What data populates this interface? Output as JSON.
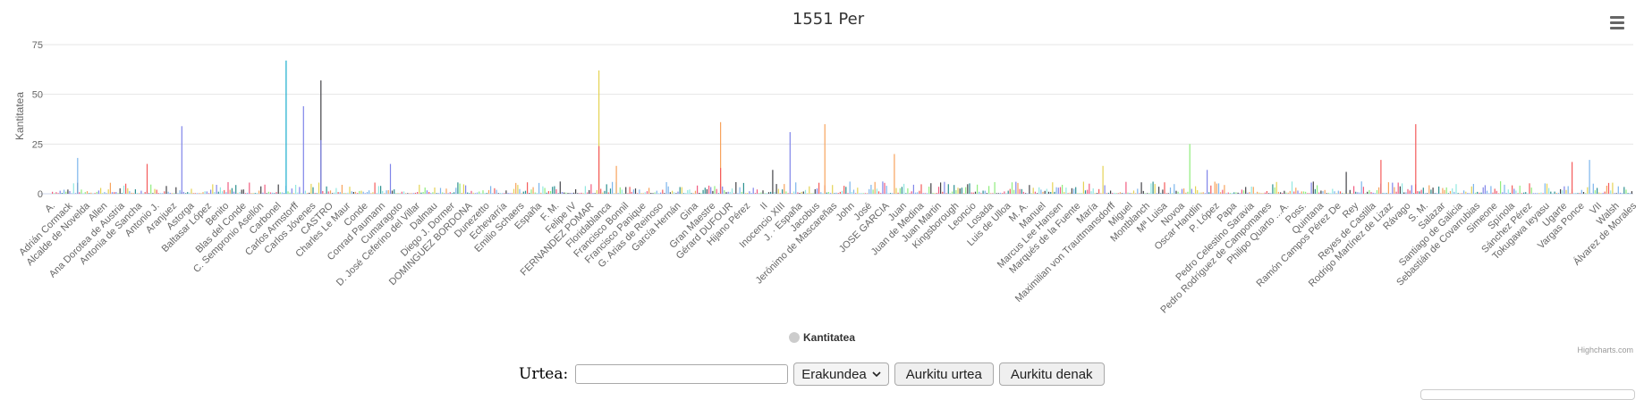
{
  "chart_data": {
    "type": "bar",
    "title": "1551 Per",
    "ylabel": "Kantitatea",
    "xlabel": "",
    "ylim": [
      0,
      75
    ],
    "yticks": [
      0,
      25,
      50,
      75
    ],
    "grid": true,
    "legend": {
      "position": "bottom-center",
      "entries": [
        "Kantitatea"
      ]
    },
    "categories": [
      "A.",
      "Adrián Cormack",
      "Alcalde de Novelda",
      "Allen",
      "Ana Dorotea de Austria",
      "Antonia de Sancha",
      "Antonio J.",
      "Aranjuez",
      "Astorga",
      "Baltasar López",
      "Benito",
      "Blas del Conde",
      "C. Sempronio Asellón",
      "Carbonel",
      "Carlos Armstorff",
      "Carlos Jóvenes",
      "CASTRO",
      "Charles Le Maur",
      "Conde",
      "Conrad Paumann",
      "Cumaragoto",
      "D. José Ceferino del Villar",
      "Dalmau",
      "Diego J. Dormer",
      "DOMINGUEZ BORDONA",
      "Dunezetto",
      "Echevarría",
      "Emilio Schaers",
      "España",
      "F. M.",
      "Felipe IV",
      "FERNANDEZ POMAR",
      "Floridablanca",
      "Francisco Bonnil",
      "Francisco Panique",
      "G. Arias de Reinoso",
      "García Hernán",
      "Gina",
      "Gran Maestre",
      "Gérard DUFOUR",
      "Hijano Pérez",
      "II",
      "Inocencio XIII",
      "J. · España",
      "Jacobus",
      "Jerónimo de Mascareñas",
      "John",
      "José",
      "JOSE GARCIA",
      "Juan",
      "Juan de Medina",
      "Juan Martin",
      "Kingsborough",
      "Leoncio",
      "Losada",
      "Luis de Ulloa",
      "M. A.",
      "Manuel",
      "Marcus Lee Hansen",
      "Marqués de la Fuente",
      "María",
      "Maximilian von Trauttmansdorff",
      "Miguel",
      "Montblanch",
      "Mª Luisa",
      "Novoa",
      "Oscar Handlin",
      "P. López",
      "Papa",
      "Pedro Celestino Saravia",
      "Pedro Rodríguez de Campomanes",
      "Philipo Quarto ...A.",
      "Poss.",
      "Quintana",
      "Ramón Campos Pérez De",
      "Rey",
      "Reyes de Castilla",
      "Rodrigo Martínez de Lizaz",
      "Rávago",
      "S. M.",
      "Salazar",
      "Santiago de Galicia",
      "Sebastián de Covarrubias",
      "Simeone",
      "Spínola",
      "Sánchez Pérez",
      "Tokugawa Ieyasu",
      "Ugarte",
      "Vargas Ponce",
      "VII",
      "Walsh",
      "Álvarez de Morales"
    ],
    "highlight_series": [
      {
        "name": "",
        "index": 13,
        "value": 67,
        "color": "#1aadce"
      },
      {
        "name": "",
        "index": 14,
        "value": 44,
        "color": "#8085e9"
      },
      {
        "name": "",
        "index": 15,
        "value": 57,
        "color": "#434348"
      },
      {
        "name": "",
        "index": 15,
        "value": 27,
        "color": "#8085e9"
      },
      {
        "name": "",
        "index": 31,
        "value": 62,
        "color": "#e4d354"
      },
      {
        "name": "",
        "index": 31,
        "value": 24,
        "color": "#f45b5b"
      },
      {
        "name": "",
        "index": 38,
        "value": 36,
        "color": "#f7a35c"
      },
      {
        "name": "",
        "index": 7,
        "value": 34,
        "color": "#8085e9"
      },
      {
        "name": "",
        "index": 42,
        "value": 31,
        "color": "#8085e9"
      },
      {
        "name": "",
        "index": 44,
        "value": 35,
        "color": "#f7a35c"
      },
      {
        "name": "",
        "index": 78,
        "value": 35,
        "color": "#f45b5b"
      },
      {
        "name": "",
        "index": 65,
        "value": 25,
        "color": "#90ed7d"
      },
      {
        "name": "",
        "index": 48,
        "value": 20,
        "color": "#f7a35c"
      },
      {
        "name": "",
        "index": 1,
        "value": 18,
        "color": "#7cb5ec"
      },
      {
        "name": "",
        "index": 88,
        "value": 17,
        "color": "#7cb5ec"
      },
      {
        "name": "",
        "index": 76,
        "value": 17,
        "color": "#f45b5b"
      },
      {
        "name": "",
        "index": 87,
        "value": 16,
        "color": "#f45b5b"
      },
      {
        "name": "",
        "index": 19,
        "value": 15,
        "color": "#8085e9"
      },
      {
        "name": "",
        "index": 5,
        "value": 15,
        "color": "#f45b5b"
      },
      {
        "name": "",
        "index": 32,
        "value": 14,
        "color": "#f7a35c"
      },
      {
        "name": "",
        "index": 60,
        "value": 14,
        "color": "#e4d354"
      },
      {
        "name": "",
        "index": 38,
        "value": 13,
        "color": "#f45b5b"
      },
      {
        "name": "",
        "index": 41,
        "value": 12,
        "color": "#434348"
      },
      {
        "name": "",
        "index": 66,
        "value": 12,
        "color": "#8085e9"
      },
      {
        "name": "",
        "index": 74,
        "value": 11,
        "color": "#434348"
      }
    ]
  },
  "menu": {
    "icon": "hamburger-menu-icon"
  },
  "credits": "Highcharts.com",
  "controls": {
    "urtea_label": "Urtea:",
    "urtea_value": "",
    "select_value": "Erakundea",
    "find_year_button": "Aurkitu urtea",
    "find_all_button": "Aurkitu denak"
  },
  "colors": {
    "palette": [
      "#7cb5ec",
      "#434348",
      "#90ed7d",
      "#f7a35c",
      "#8085e9",
      "#f15c80",
      "#e4d354",
      "#2b908f",
      "#f45b5b",
      "#91e8e1"
    ],
    "legend_marker": "#cccccc",
    "grid": "#e6e6e6"
  }
}
